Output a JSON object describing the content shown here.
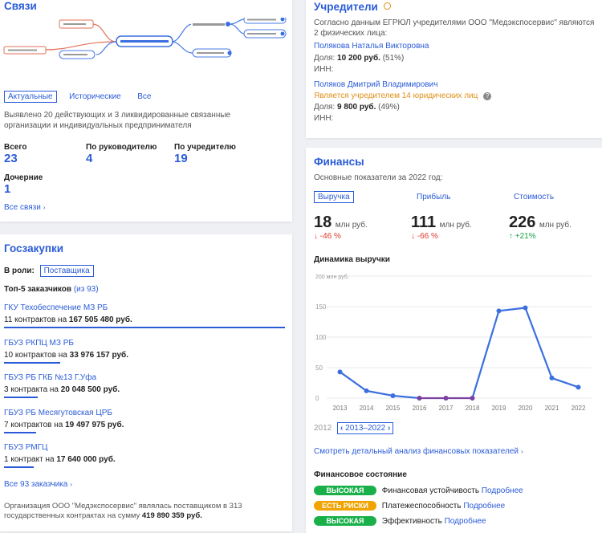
{
  "svyazi": {
    "title": "Связи",
    "tabs": [
      "Актуальные",
      "Исторические",
      "Все"
    ],
    "summary": "Выявлено 20 действующих и 3 ликвидированные связанные организации и индивидуальных предпринимателя",
    "stats": [
      {
        "label": "Всего",
        "value": "23"
      },
      {
        "label": "По руководителю",
        "value": "4"
      },
      {
        "label": "По учредителю",
        "value": "19"
      },
      {
        "label": "Дочерние",
        "value": "1"
      }
    ],
    "all_link": "Все связи"
  },
  "goszakupki": {
    "title": "Госзакупки",
    "role_label": "В роли:",
    "role_value": "Поставщика",
    "top_label": "Топ-5 заказчиков",
    "top_count": "(из 93)",
    "customers": [
      {
        "name": "ГКУ Техобеспечение МЗ РБ",
        "contracts": "11 контрактов на",
        "amount": "167 505 480 руб.",
        "share": 1.0
      },
      {
        "name": "ГБУЗ РКПЦ МЗ РБ",
        "contracts": "10 контрактов на",
        "amount": "33 976 157 руб.",
        "share": 0.2
      },
      {
        "name": "ГБУЗ РБ ГКБ №13 Г.Уфа",
        "contracts": "3 контракта на",
        "amount": "20 048 500 руб.",
        "share": 0.12
      },
      {
        "name": "ГБУЗ РБ Месягутовская ЦРБ",
        "contracts": "7 контрактов на",
        "amount": "19 497 975 руб.",
        "share": 0.115
      },
      {
        "name": "ГБУЗ РМГЦ",
        "contracts": "1 контракт на",
        "amount": "17 640 000 руб.",
        "share": 0.105
      }
    ],
    "all_link": "Все 93 заказчика",
    "footer_text": "Организация ООО \"Медэкспосервис\" являлась поставщиком в 313 государственных контрактах на сумму",
    "footer_amount": "419 890 359 руб."
  },
  "uchrediteli": {
    "title": "Учредители",
    "intro": "Согласно данным ЕГРЮЛ учредителями ООО \"Медэкспосервис\" являются 2 физических лица:",
    "persons": [
      {
        "name": "Полякова Наталья Викторовна",
        "note": "",
        "share_label": "Доля:",
        "share_amount": "10 200 руб.",
        "share_pct": "(51%)",
        "inn_label": "ИНН:"
      },
      {
        "name": "Поляков Дмитрий Владимирович",
        "note": "Является учредителем 14 юридических лиц",
        "share_label": "Доля:",
        "share_amount": "9 800 руб.",
        "share_pct": "(49%)",
        "inn_label": "ИНН:"
      }
    ]
  },
  "finance": {
    "title": "Финансы",
    "subtitle": "Основные показатели за 2022 год:",
    "tabs": [
      "Выручка",
      "Прибыль",
      "Стоимость"
    ],
    "metrics": [
      {
        "value": "18",
        "unit": "млн руб.",
        "change": "-46 %",
        "dir": "down"
      },
      {
        "value": "111",
        "unit": "млн руб.",
        "change": "-66 %",
        "dir": "down"
      },
      {
        "value": "226",
        "unit": "млн руб.",
        "change": "+21%",
        "dir": "up"
      }
    ],
    "chart_title": "Динамика выручки",
    "range_start": "2012",
    "range_label": "2013–2022",
    "detail_link": "Смотреть детальный анализ финансовых показателей",
    "state_title": "Финансовое состояние",
    "states": [
      {
        "badge": "ВЫСОКАЯ",
        "color": "#19b04a",
        "label": "Финансовая устойчивость",
        "more": "Подробнее"
      },
      {
        "badge": "ЕСТЬ РИСКИ",
        "color": "#f0a400",
        "label": "Платежеспособность",
        "more": "Подробнее"
      },
      {
        "badge": "ВЫСОКАЯ",
        "color": "#19b04a",
        "label": "Эффективность",
        "more": "Подробнее"
      }
    ]
  },
  "chart_data": {
    "type": "line",
    "title": "Динамика выручки",
    "x": [
      "2013",
      "2014",
      "2015",
      "2016",
      "2017",
      "2018",
      "2019",
      "2020",
      "2021",
      "2022"
    ],
    "values": [
      43,
      12,
      4,
      0,
      0,
      0,
      143,
      148,
      33,
      18
    ],
    "y_ticks": [
      "0",
      "50",
      "100",
      "150",
      "200 млн руб."
    ],
    "ylim": [
      0,
      200
    ],
    "line_color": "#3b6fe0",
    "zero_color": "#7a3fa0"
  }
}
